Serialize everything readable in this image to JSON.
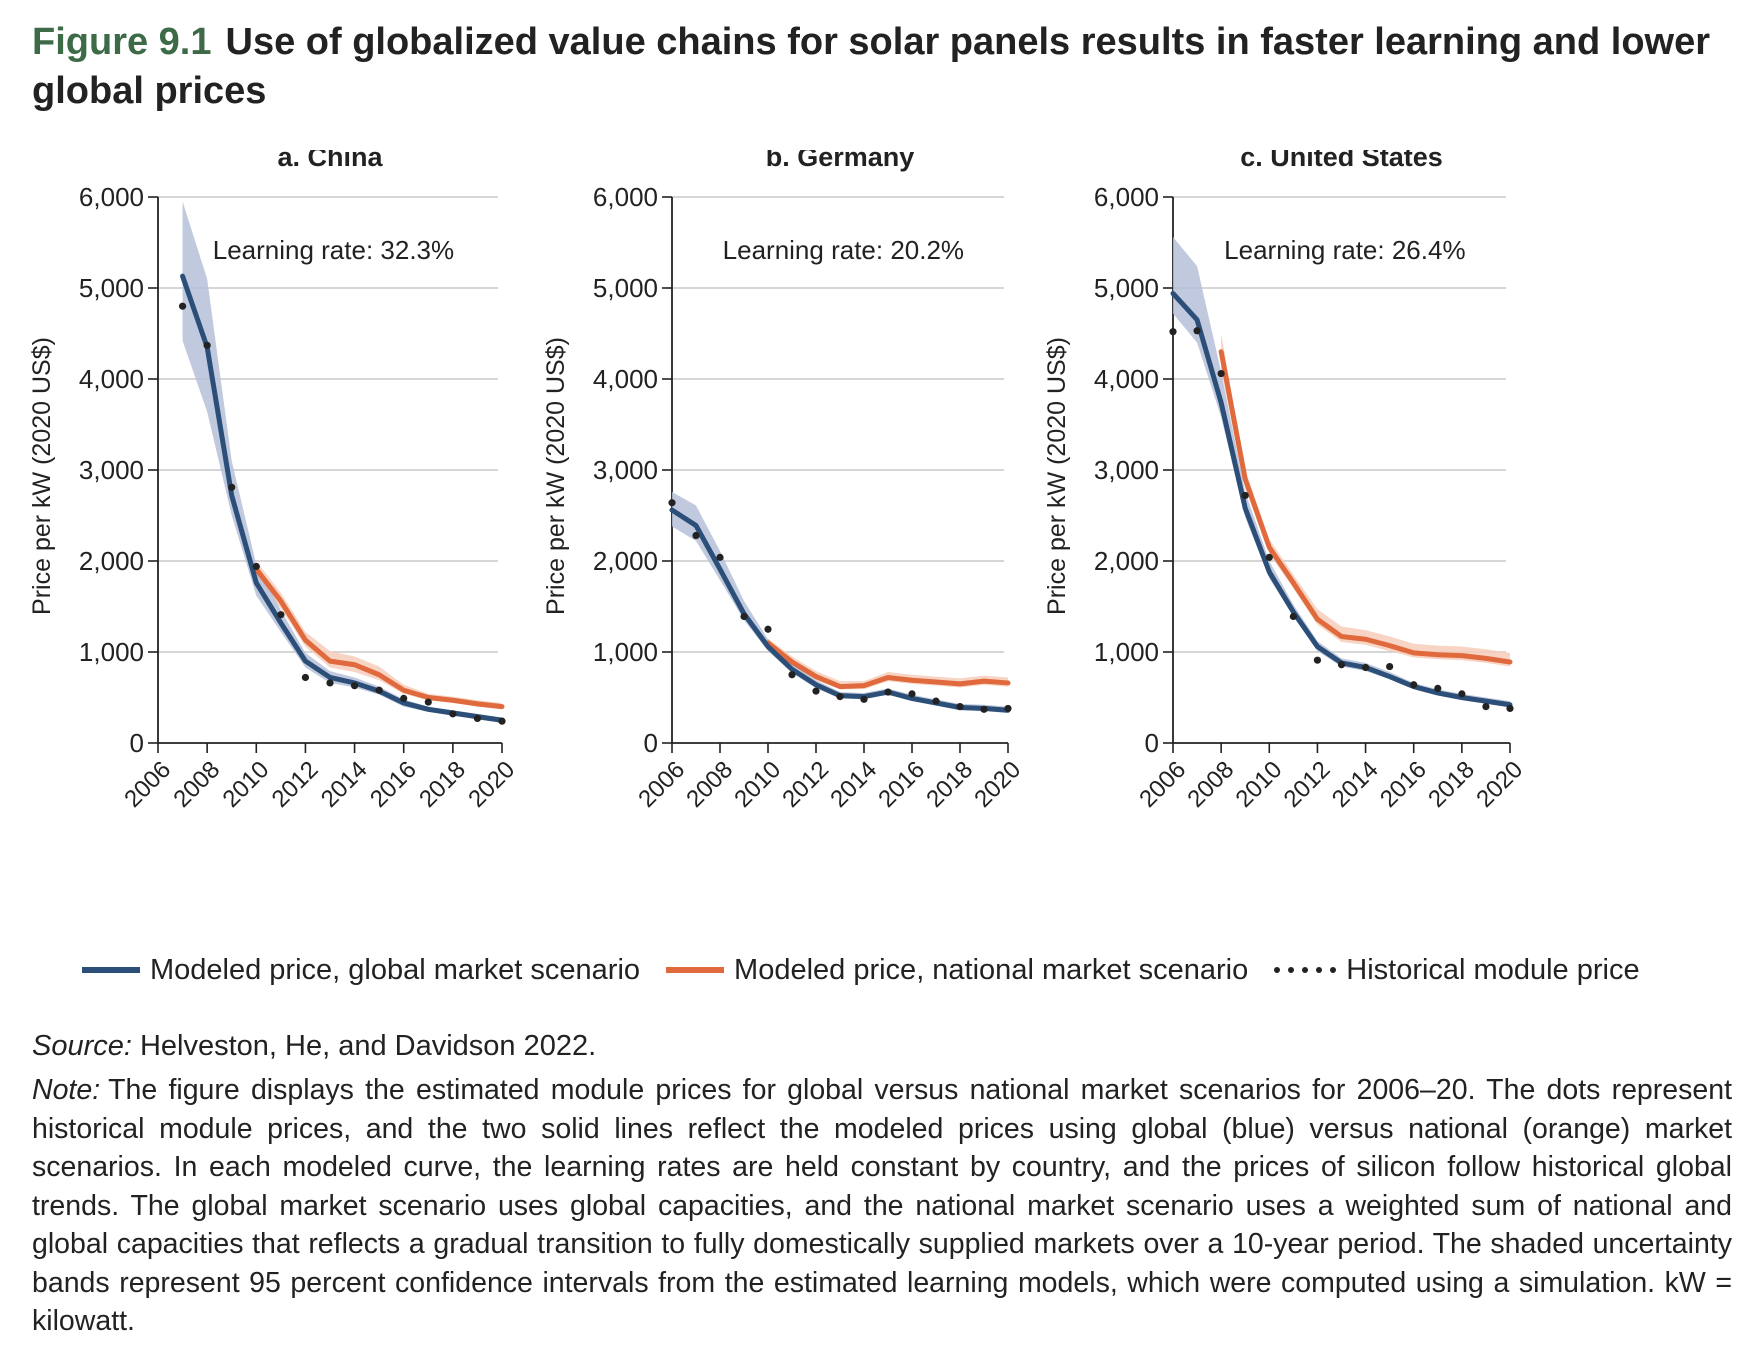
{
  "figure": {
    "number": "Figure 9.1",
    "title": "Use of globalized value chains for solar panels results in faster learning and lower global prices"
  },
  "legend": {
    "global": "Modeled price, global market scenario",
    "national": "Modeled price, national market scenario",
    "historical": "Historical module price"
  },
  "source": {
    "label": "Source:",
    "text": "Helveston, He, and Davidson 2022."
  },
  "note": {
    "label": "Note:",
    "text": "The figure displays the estimated module prices for global versus national market scenarios for 2006–20. The dots represent historical module prices, and the two solid lines reflect the modeled prices using global (blue) versus national (orange) market scenarios. In each modeled curve, the learning rates are held constant by country, and the prices of silicon follow historical global trends. The global market scenario uses global capacities, and the national market scenario uses a weighted sum of national and global capacities that reflects a gradual transition to fully domestically supplied markets over a 10-year period. The shaded uncertainty bands represent 95 percent confidence intervals from the estimated learning models, which were computed using a simulation. kW = kilowatt."
  },
  "colors": {
    "global": "#2b4f78",
    "global_band": "#b6bfd8",
    "national": "#e06a3d",
    "national_band": "#f6cdb8",
    "historical": "#222222",
    "grid": "#c8c8c8",
    "figure_number": "#3d6b47"
  },
  "chart_data": [
    {
      "type": "line",
      "title": "a. China",
      "annotation": "Learning rate: 32.3%",
      "ylabel": "Price per kW (2020 US$)",
      "xlabel": "",
      "ylim": [
        0,
        6000
      ],
      "yticks": [
        0,
        1000,
        2000,
        3000,
        4000,
        5000,
        6000
      ],
      "ytick_labels": [
        "0",
        "1,000",
        "2,000",
        "3,000",
        "4,000",
        "5,000",
        "6,000"
      ],
      "xlim": [
        2006,
        2020
      ],
      "xticks": [
        2006,
        2008,
        2010,
        2012,
        2014,
        2016,
        2018,
        2020
      ],
      "grid": true,
      "series": [
        {
          "key": "global",
          "x": [
            2007,
            2008,
            2009,
            2010,
            2011,
            2012,
            2013,
            2014,
            2015,
            2016,
            2017,
            2018,
            2019,
            2020
          ],
          "values": [
            5130,
            4350,
            2720,
            1760,
            1320,
            900,
            720,
            660,
            570,
            440,
            370,
            330,
            290,
            250
          ],
          "band_low": [
            4420,
            3640,
            2500,
            1620,
            1220,
            830,
            660,
            610,
            530,
            400,
            340,
            300,
            260,
            220
          ],
          "band_high": [
            5950,
            5100,
            3100,
            1960,
            1460,
            990,
            790,
            720,
            620,
            480,
            400,
            360,
            320,
            280
          ]
        },
        {
          "key": "national",
          "x": [
            2010,
            2011,
            2012,
            2013,
            2014,
            2015,
            2016,
            2017,
            2018,
            2019,
            2020
          ],
          "values": [
            1910,
            1560,
            1130,
            900,
            860,
            750,
            580,
            500,
            470,
            430,
            400
          ],
          "band_low": [
            1830,
            1480,
            1060,
            830,
            780,
            690,
            540,
            470,
            440,
            400,
            370
          ],
          "band_high": [
            2000,
            1650,
            1220,
            1010,
            950,
            840,
            640,
            540,
            510,
            470,
            440
          ]
        },
        {
          "key": "historical",
          "x": [
            2007,
            2008,
            2009,
            2010,
            2011,
            2012,
            2013,
            2014,
            2015,
            2016,
            2017,
            2018,
            2019,
            2020
          ],
          "values": [
            4800,
            4370,
            2810,
            1940,
            1410,
            720,
            660,
            630,
            580,
            490,
            450,
            320,
            270,
            240
          ]
        }
      ]
    },
    {
      "type": "line",
      "title": "b. Germany",
      "annotation": "Learning rate: 20.2%",
      "ylabel": "Price per kW (2020 US$)",
      "xlabel": "",
      "ylim": [
        0,
        6000
      ],
      "yticks": [
        0,
        1000,
        2000,
        3000,
        4000,
        5000,
        6000
      ],
      "ytick_labels": [
        "0",
        "1,000",
        "2,000",
        "3,000",
        "4,000",
        "5,000",
        "6,000"
      ],
      "xlim": [
        2006,
        2020
      ],
      "xticks": [
        2006,
        2008,
        2010,
        2012,
        2014,
        2016,
        2018,
        2020
      ],
      "grid": true,
      "series": [
        {
          "key": "global",
          "x": [
            2006,
            2007,
            2008,
            2009,
            2010,
            2011,
            2012,
            2013,
            2014,
            2015,
            2016,
            2017,
            2018,
            2019,
            2020
          ],
          "values": [
            2560,
            2390,
            1910,
            1420,
            1060,
            810,
            640,
            520,
            510,
            560,
            490,
            440,
            390,
            380,
            360
          ],
          "band_low": [
            2380,
            2220,
            1790,
            1350,
            1010,
            770,
            600,
            490,
            480,
            530,
            460,
            410,
            360,
            350,
            330
          ],
          "band_high": [
            2760,
            2610,
            2110,
            1560,
            1140,
            870,
            690,
            560,
            550,
            600,
            530,
            480,
            430,
            420,
            400
          ]
        },
        {
          "key": "national",
          "x": [
            2010,
            2011,
            2012,
            2013,
            2014,
            2015,
            2016,
            2017,
            2018,
            2019,
            2020
          ],
          "values": [
            1100,
            890,
            730,
            620,
            630,
            720,
            690,
            670,
            650,
            680,
            660
          ],
          "band_low": [
            1050,
            850,
            690,
            590,
            590,
            680,
            650,
            630,
            610,
            640,
            620
          ],
          "band_high": [
            1150,
            950,
            790,
            680,
            680,
            780,
            750,
            730,
            710,
            740,
            720
          ]
        },
        {
          "key": "historical",
          "x": [
            2006,
            2007,
            2008,
            2009,
            2010,
            2011,
            2012,
            2013,
            2014,
            2015,
            2016,
            2017,
            2018,
            2019,
            2020
          ],
          "values": [
            2640,
            2280,
            2040,
            1390,
            1250,
            750,
            570,
            510,
            480,
            560,
            540,
            460,
            400,
            370,
            380
          ]
        }
      ]
    },
    {
      "type": "line",
      "title": "c. United States",
      "annotation": "Learning rate: 26.4%",
      "ylabel": "Price per kW (2020 US$)",
      "xlabel": "",
      "ylim": [
        0,
        6000
      ],
      "yticks": [
        0,
        1000,
        2000,
        3000,
        4000,
        5000,
        6000
      ],
      "ytick_labels": [
        "0",
        "1,000",
        "2,000",
        "3,000",
        "4,000",
        "5,000",
        "6,000"
      ],
      "xlim": [
        2006,
        2020
      ],
      "xticks": [
        2006,
        2008,
        2010,
        2012,
        2014,
        2016,
        2018,
        2020
      ],
      "grid": true,
      "series": [
        {
          "key": "global",
          "x": [
            2006,
            2007,
            2008,
            2009,
            2010,
            2011,
            2012,
            2013,
            2014,
            2015,
            2016,
            2017,
            2018,
            2019,
            2020
          ],
          "values": [
            4940,
            4650,
            3740,
            2580,
            1880,
            1440,
            1060,
            880,
            830,
            730,
            620,
            550,
            500,
            460,
            420
          ],
          "band_low": [
            4720,
            4400,
            3580,
            2480,
            1810,
            1390,
            1010,
            840,
            790,
            700,
            590,
            520,
            470,
            430,
            390
          ],
          "band_high": [
            5560,
            5240,
            4080,
            2760,
            2000,
            1520,
            1120,
            930,
            880,
            780,
            660,
            590,
            540,
            500,
            460
          ]
        },
        {
          "key": "national",
          "x": [
            2008,
            2009,
            2010,
            2011,
            2012,
            2013,
            2014,
            2015,
            2016,
            2017,
            2018,
            2019,
            2020
          ],
          "values": [
            4300,
            2900,
            2150,
            1760,
            1360,
            1170,
            1140,
            1070,
            990,
            970,
            960,
            930,
            890
          ],
          "band_low": [
            4100,
            2800,
            2080,
            1700,
            1300,
            1110,
            1080,
            1010,
            940,
            920,
            910,
            880,
            840
          ],
          "band_high": [
            4500,
            3000,
            2240,
            1850,
            1470,
            1280,
            1240,
            1170,
            1090,
            1070,
            1060,
            1030,
            990
          ]
        },
        {
          "key": "historical",
          "x": [
            2006,
            2007,
            2008,
            2009,
            2010,
            2011,
            2012,
            2013,
            2014,
            2015,
            2016,
            2017,
            2018,
            2019,
            2020
          ],
          "values": [
            4520,
            4530,
            4060,
            2720,
            2040,
            1390,
            910,
            860,
            830,
            840,
            640,
            600,
            540,
            400,
            380
          ]
        }
      ]
    }
  ]
}
